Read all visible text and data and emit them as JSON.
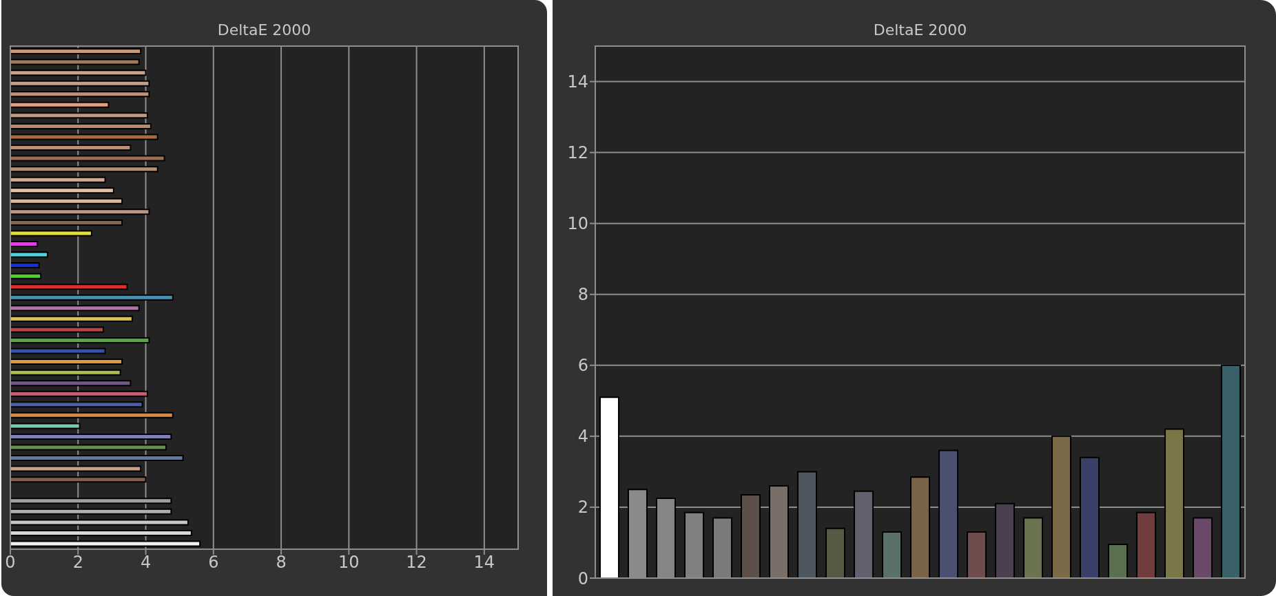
{
  "chart_data": [
    {
      "type": "bar",
      "title": "DeltaE 2000",
      "orientation": "horizontal",
      "categories": [
        null,
        null,
        null,
        null,
        null,
        null,
        null,
        null,
        null,
        null,
        null,
        null,
        null,
        null,
        null,
        null,
        null,
        null,
        null,
        null,
        null,
        null,
        null,
        null,
        null,
        null,
        null,
        null,
        null,
        null,
        null,
        null,
        null,
        null,
        null,
        null,
        null,
        null,
        null,
        null,
        null,
        null,
        null,
        null,
        null,
        null,
        null
      ],
      "values": [
        3.85,
        3.8,
        4.0,
        4.1,
        4.1,
        2.9,
        4.05,
        4.15,
        4.35,
        3.55,
        4.55,
        4.35,
        2.8,
        3.05,
        3.3,
        4.1,
        3.3,
        2.4,
        0.8,
        1.1,
        0.85,
        0.9,
        3.45,
        4.8,
        3.8,
        3.6,
        2.75,
        4.1,
        2.8,
        3.3,
        3.25,
        3.55,
        4.05,
        3.9,
        4.8,
        2.05,
        4.75,
        4.6,
        5.1,
        3.85,
        4.0,
        null,
        4.75,
        4.75,
        5.25,
        5.35,
        5.6
      ],
      "colors": [
        "#c8987a",
        "#a07a5e",
        "#c9a088",
        "#c8a08a",
        "#bb9478",
        "#e0a080",
        "#c29a80",
        "#b88a6a",
        "#a66c40",
        "#b89078",
        "#9a7050",
        "#b89070",
        "#d8a890",
        "#e0c0a8",
        "#dab8a0",
        "#c09480",
        "#8a6448",
        "#e0e040",
        "#e040e0",
        "#50d0e0",
        "#1030e0",
        "#50d030",
        "#d83030",
        "#4a90b0",
        "#b870a8",
        "#e0c050",
        "#b04848",
        "#60a050",
        "#3850a8",
        "#e09840",
        "#a8c050",
        "#705880",
        "#c06070",
        "#4860a8",
        "#d88840",
        "#80c8b0",
        "#8080b8",
        "#6a8a50",
        "#6078a8",
        "#c8a088",
        "#806050",
        null,
        "#a0a0a0",
        "#b0b0b0",
        "#c8c8c8",
        "#d8d8d8",
        "#f0f0f0"
      ],
      "xlim": [
        0,
        15
      ],
      "xticks": [
        0,
        2,
        4,
        6,
        8,
        10,
        12,
        14
      ],
      "grid": "x",
      "tick_labels": "x"
    },
    {
      "type": "bar",
      "title": "DeltaE 2000",
      "categories": [
        null,
        null,
        null,
        null,
        null,
        null,
        null,
        null,
        null,
        null,
        null,
        null,
        null,
        null,
        null,
        null,
        null,
        null,
        null,
        null,
        null,
        null,
        null
      ],
      "values": [
        5.1,
        2.5,
        2.25,
        1.85,
        1.7,
        2.35,
        2.6,
        3.0,
        1.4,
        2.45,
        1.3,
        2.85,
        3.6,
        1.3,
        2.1,
        1.7,
        4.0,
        3.4,
        0.95,
        1.85,
        4.2,
        1.7,
        6.0
      ],
      "colors": [
        "#ffffff",
        "#8a8a8a",
        "#858585",
        "#808080",
        "#7a7a7a",
        "#5c5048",
        "#7a6e68",
        "#4e5660",
        "#545a44",
        "#60606e",
        "#5a7068",
        "#7a6448",
        "#4a5070",
        "#704c4c",
        "#4c4050",
        "#6a7450",
        "#7a6a48",
        "#3a4068",
        "#5a7050",
        "#703c3c",
        "#7a7648",
        "#6a4a68",
        "#3a6068"
      ],
      "ylim": [
        0,
        15
      ],
      "yticks": [
        0,
        2,
        4,
        6,
        8,
        10,
        12,
        14
      ],
      "grid": "y",
      "tick_labels": "y"
    }
  ]
}
